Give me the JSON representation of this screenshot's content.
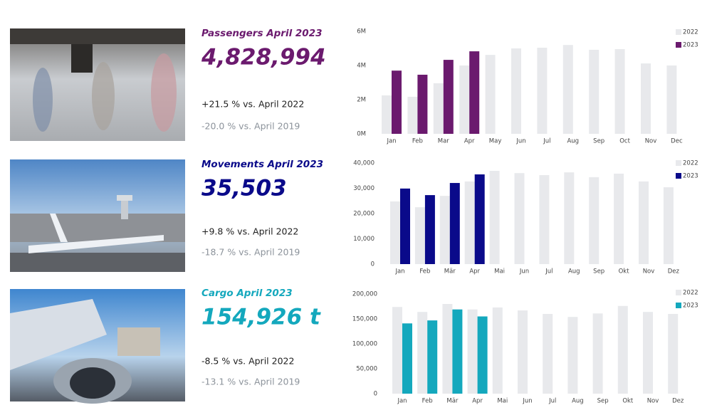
{
  "panels": [
    {
      "title": "Passengers April 2023",
      "value": "4,828,994",
      "change_prev_year": "+21.5 % vs. April 2022",
      "change_2019": "-20.0 % vs. April 2019"
    },
    {
      "title": "Movements April 2023",
      "value": "35,503",
      "change_prev_year": "+9.8 % vs. April 2022",
      "change_2019": "-18.7 % vs. April 2019"
    },
    {
      "title": "Cargo April 2023",
      "value": "154,926 t",
      "change_prev_year": "-8.5 % vs. April 2022",
      "change_2019": "-13.1 % vs. April 2019"
    }
  ],
  "chart_data": [
    {
      "type": "bar",
      "legend": "top-right",
      "categories": [
        "Jan",
        "Feb",
        "Mar",
        "Apr",
        "May",
        "Jun",
        "Jul",
        "Aug",
        "Sep",
        "Oct",
        "Nov",
        "Dec"
      ],
      "series": [
        {
          "name": "2022",
          "color": "#e8e9ec",
          "values": [
            2250000,
            2170000,
            2960000,
            4000000,
            4620000,
            5000000,
            5040000,
            5200000,
            4920000,
            4960000,
            4120000,
            4000000
          ]
        },
        {
          "name": "2023",
          "color": "#6b1a6e",
          "values": [
            3700000,
            3460000,
            4330000,
            4830000,
            null,
            null,
            null,
            null,
            null,
            null,
            null,
            null
          ]
        }
      ],
      "ylim": [
        0,
        6000000
      ],
      "yticks": [
        {
          "value": 0,
          "label": "0M"
        },
        {
          "value": 2000000,
          "label": "2M"
        },
        {
          "value": 4000000,
          "label": "4M"
        },
        {
          "value": 6000000,
          "label": "6M"
        }
      ]
    },
    {
      "type": "bar",
      "legend": "top-right",
      "categories": [
        "Jan",
        "Feb",
        "Mär",
        "Apr",
        "Mai",
        "Jun",
        "Jul",
        "Aug",
        "Sep",
        "Okt",
        "Nov",
        "Dez"
      ],
      "series": [
        {
          "name": "2022",
          "color": "#e8e9ec",
          "values": [
            24800,
            22500,
            27000,
            32700,
            36900,
            36000,
            35200,
            36300,
            34400,
            35800,
            32700,
            30400
          ]
        },
        {
          "name": "2023",
          "color": "#0a0a8a",
          "values": [
            29900,
            27300,
            32100,
            35500,
            null,
            null,
            null,
            null,
            null,
            null,
            null,
            null
          ]
        }
      ],
      "ylim": [
        0,
        40000
      ],
      "yticks": [
        0,
        {
          "value": 10000,
          "label": "10,000"
        },
        {
          "value": 20000,
          "label": "20,000"
        },
        {
          "value": 30000,
          "label": "30,000"
        },
        {
          "value": 40000,
          "label": "40,000"
        }
      ]
    },
    {
      "type": "bar",
      "legend": "top-right",
      "categories": [
        "Jan",
        "Feb",
        "Mär",
        "Apr",
        "Mai",
        "Jun",
        "Jul",
        "Aug",
        "Sep",
        "Okt",
        "Nov",
        "Dez"
      ],
      "series": [
        {
          "name": "2022",
          "color": "#e8e9ec",
          "values": [
            174000,
            164000,
            180000,
            169000,
            173000,
            167000,
            160000,
            154000,
            161000,
            176000,
            164000,
            160000
          ]
        },
        {
          "name": "2023",
          "color": "#14a8bd",
          "values": [
            141000,
            147000,
            169000,
            155000,
            null,
            null,
            null,
            null,
            null,
            null,
            null,
            null
          ]
        }
      ],
      "ylim": [
        0,
        200000
      ],
      "yticks": [
        0,
        {
          "value": 50000,
          "label": "50,000"
        },
        {
          "value": 100000,
          "label": "100,000"
        },
        {
          "value": 150000,
          "label": "150,000"
        },
        {
          "value": 200000,
          "label": "200,000"
        }
      ]
    }
  ]
}
